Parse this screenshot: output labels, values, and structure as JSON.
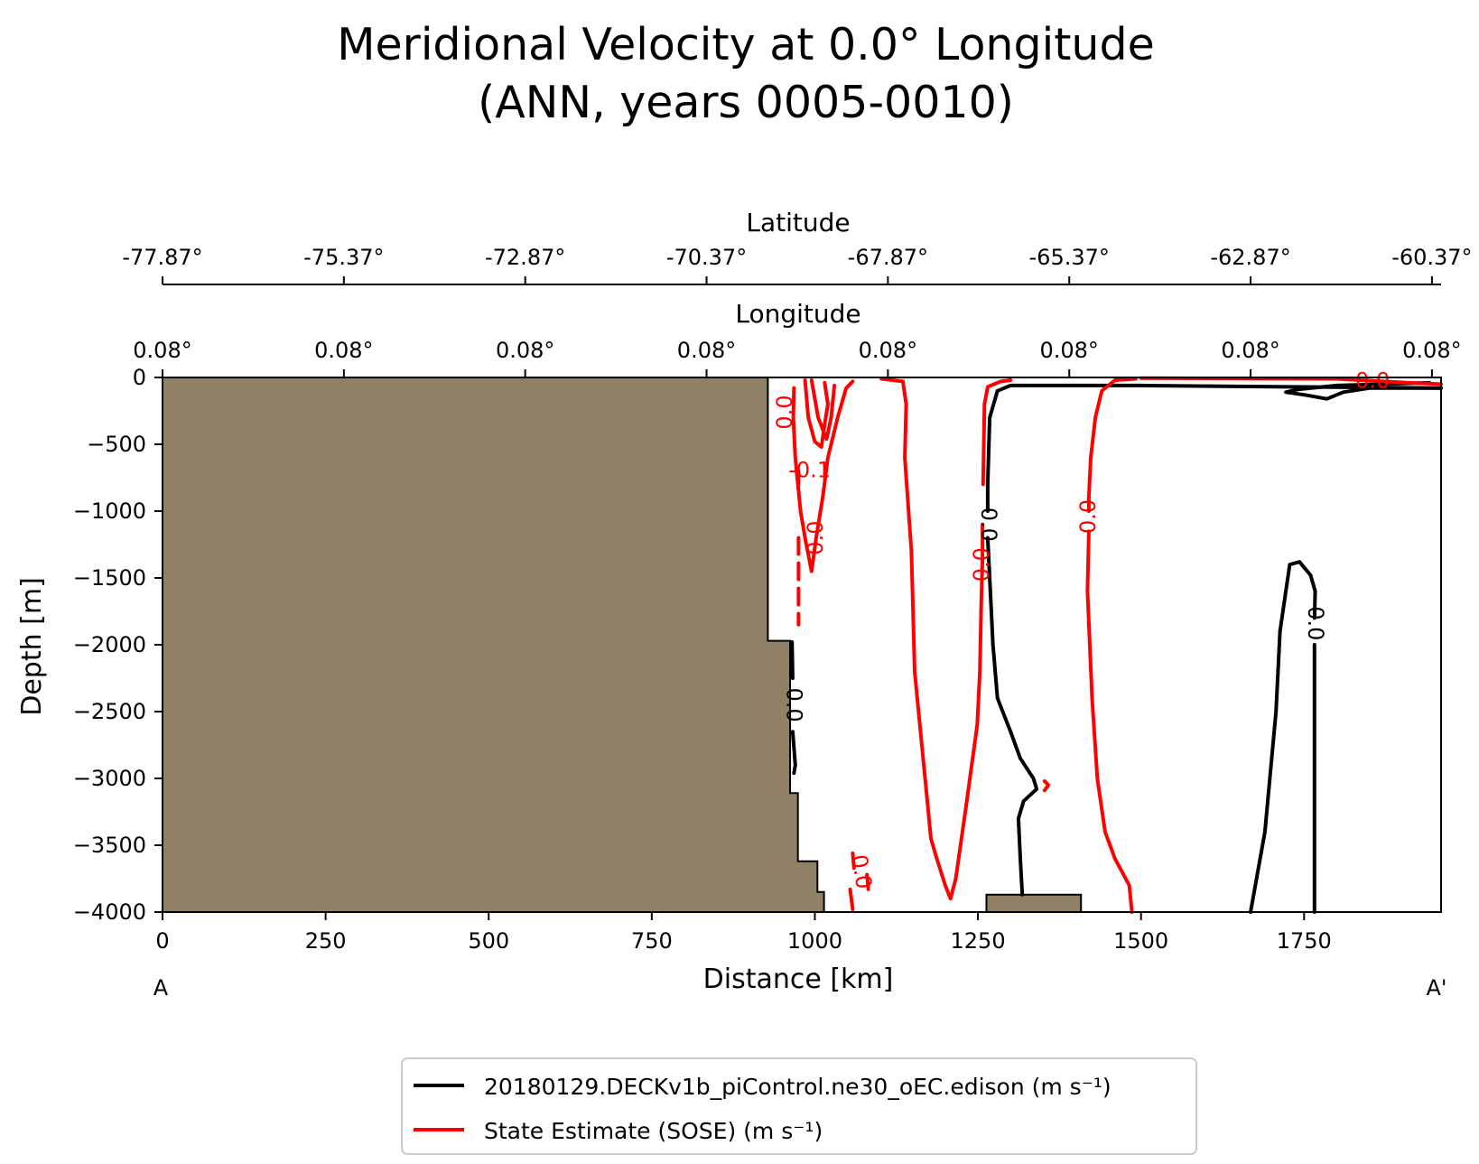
{
  "chart_data": {
    "type": "line",
    "title_line1": "Meridional Velocity at 0.0° Longitude",
    "title_line2": "(ANN, years 0005-0010)",
    "xlabel": "Distance [km]",
    "ylabel": "Depth [m]",
    "lat_axis_label": "Latitude",
    "lon_axis_label": "Longitude",
    "section_start_label": "A",
    "section_end_label": "A'",
    "xlim": [
      0,
      1960
    ],
    "ylim": [
      -4000,
      0
    ],
    "x_ticks": [
      0,
      250,
      500,
      750,
      1000,
      1250,
      1500,
      1750
    ],
    "y_ticks": [
      0,
      -500,
      -1000,
      -1500,
      -2000,
      -2500,
      -3000,
      -3500,
      -4000
    ],
    "lat_ticks": {
      "positions_km": [
        0,
        278,
        556,
        834,
        1112,
        1390,
        1668,
        1946
      ],
      "labels": [
        "-77.87°",
        "-75.37°",
        "-72.87°",
        "-70.37°",
        "-67.87°",
        "-65.37°",
        "-62.87°",
        "-60.37°"
      ]
    },
    "lon_ticks": {
      "positions_km": [
        0,
        278,
        556,
        834,
        1112,
        1390,
        1668,
        1946
      ],
      "labels": [
        "0.08°",
        "0.08°",
        "0.08°",
        "0.08°",
        "0.08°",
        "0.08°",
        "0.08°",
        "0.08°"
      ]
    },
    "colors": {
      "model": "#000000",
      "obs": "#ff0000",
      "land": "#8f8066"
    },
    "bathymetry": [
      [
        0,
        0
      ],
      [
        928,
        0
      ],
      [
        928,
        -1970
      ],
      [
        962,
        -1970
      ],
      [
        962,
        -3110
      ],
      [
        974,
        -3110
      ],
      [
        974,
        -3620
      ],
      [
        1004,
        -3620
      ],
      [
        1004,
        -3850
      ],
      [
        1014,
        -3850
      ],
      [
        1014,
        -4000
      ],
      [
        0,
        -4000
      ]
    ],
    "seamount": [
      [
        1263,
        -4000
      ],
      [
        1263,
        -3870
      ],
      [
        1408,
        -3870
      ],
      [
        1408,
        -4000
      ]
    ],
    "series": [
      {
        "name": "20180129.DECKv1b_piControl.ne30_oEC.edison (m s⁻¹)",
        "color": "#000000",
        "contours": [
          {
            "points": [
              [
                1960,
                -80
              ],
              [
                1500,
                -60
              ],
              [
                1300,
                -60
              ],
              [
                1280,
                -100
              ],
              [
                1268,
                -300
              ],
              [
                1265,
                -800
              ],
              [
                1265,
                -1000
              ]
            ]
          },
          {
            "points": [
              [
                1265,
                -1200
              ],
              [
                1268,
                -1500
              ],
              [
                1273,
                -2000
              ],
              [
                1280,
                -2400
              ],
              [
                1300,
                -2650
              ],
              [
                1315,
                -2850
              ],
              [
                1335,
                -3000
              ],
              [
                1340,
                -3080
              ],
              [
                1320,
                -3170
              ],
              [
                1312,
                -3300
              ],
              [
                1315,
                -3600
              ],
              [
                1318,
                -3870
              ]
            ]
          },
          {
            "points": [
              [
                1942,
                -40
              ],
              [
                1800,
                -60
              ],
              [
                1740,
                -90
              ],
              [
                1722,
                -110
              ],
              [
                1750,
                -130
              ],
              [
                1785,
                -160
              ],
              [
                1810,
                -110
              ],
              [
                1850,
                -80
              ],
              [
                1960,
                -80
              ]
            ]
          },
          {
            "points": [
              [
                1668,
                -4000
              ],
              [
                1690,
                -3400
              ],
              [
                1707,
                -2500
              ],
              [
                1713,
                -1900
              ],
              [
                1728,
                -1400
              ],
              [
                1743,
                -1380
              ],
              [
                1760,
                -1480
              ],
              [
                1767,
                -1600
              ],
              [
                1766,
                -1800
              ]
            ]
          },
          {
            "points": [
              [
                1766,
                -2000
              ],
              [
                1766,
                -2500
              ],
              [
                1766,
                -3000
              ],
              [
                1766,
                -4000
              ]
            ]
          },
          {
            "points": [
              [
                965,
                -1980
              ],
              [
                966,
                -2250
              ]
            ]
          },
          {
            "points": [
              [
                966,
                -2650
              ],
              [
                970,
                -2900
              ],
              [
                968,
                -2960
              ]
            ]
          }
        ]
      },
      {
        "name": "State Estimate (SOSE) (m s⁻¹)",
        "color": "#ff0000",
        "contours": [
          {
            "points": [
              [
                1102,
                -10
              ],
              [
                1135,
                -30
              ],
              [
                1140,
                -200
              ],
              [
                1138,
                -600
              ],
              [
                1148,
                -1300
              ],
              [
                1153,
                -2200
              ],
              [
                1163,
                -2700
              ],
              [
                1170,
                -3050
              ],
              [
                1178,
                -3450
              ],
              [
                1187,
                -3600
              ],
              [
                1200,
                -3800
              ],
              [
                1208,
                -3900
              ],
              [
                1216,
                -3750
              ],
              [
                1232,
                -3200
              ],
              [
                1249,
                -2600
              ],
              [
                1253,
                -2200
              ],
              [
                1255,
                -1700
              ],
              [
                1257,
                -1350
              ],
              [
                1257,
                -1100
              ]
            ]
          },
          {
            "points": [
              [
                1258,
                -800
              ],
              [
                1260,
                -200
              ],
              [
                1265,
                -70
              ],
              [
                1285,
                -30
              ],
              [
                1300,
                -20
              ]
            ]
          },
          {
            "points": [
              [
                1492,
                -10
              ],
              [
                1460,
                -20
              ],
              [
                1440,
                -100
              ],
              [
                1430,
                -300
              ],
              [
                1423,
                -600
              ],
              [
                1420,
                -900
              ],
              [
                1420,
                -1000
              ]
            ]
          },
          {
            "points": [
              [
                1420,
                -1150
              ],
              [
                1418,
                -1600
              ],
              [
                1425,
                -2400
              ],
              [
                1433,
                -3000
              ],
              [
                1445,
                -3400
              ],
              [
                1460,
                -3600
              ],
              [
                1482,
                -3800
              ],
              [
                1486,
                -4000
              ]
            ]
          },
          {
            "points": [
              [
                1500,
                -5
              ],
              [
                1800,
                -10
              ],
              [
                1910,
                -40
              ],
              [
                1960,
                -50
              ]
            ]
          },
          {
            "points": [
              [
                968,
                -80
              ],
              [
                967,
                -300
              ],
              [
                970,
                -600
              ],
              [
                978,
                -1000
              ],
              [
                985,
                -1200
              ],
              [
                995,
                -1450
              ],
              [
                1002,
                -1200
              ],
              [
                1012,
                -900
              ],
              [
                1020,
                -600
              ],
              [
                1035,
                -300
              ],
              [
                1048,
                -80
              ],
              [
                1058,
                -30
              ]
            ]
          },
          {
            "points": [
              [
                985,
                -20
              ],
              [
                990,
                -300
              ],
              [
                1000,
                -480
              ],
              [
                1010,
                -520
              ],
              [
                1015,
                -350
              ],
              [
                1020,
                -200
              ],
              [
                1015,
                -40
              ]
            ]
          },
          {
            "points": [
              [
                995,
                -20
              ],
              [
                1005,
                -300
              ],
              [
                1018,
                -460
              ],
              [
                1025,
                -300
              ],
              [
                1030,
                -60
              ]
            ]
          },
          {
            "points": [
              [
                975,
                -700
              ],
              [
                975,
                -800
              ]
            ],
            "dashed": true
          },
          {
            "points": [
              [
                975,
                -1200
              ],
              [
                975,
                -1850
              ]
            ],
            "dashed": true
          },
          {
            "points": [
              [
                1080,
                -3720
              ],
              [
                1082,
                -3830
              ]
            ]
          },
          {
            "points": [
              [
                1058,
                -3560
              ],
              [
                1060,
                -3670
              ]
            ]
          },
          {
            "points": [
              [
                1054,
                -3830
              ],
              [
                1058,
                -3980
              ]
            ]
          },
          {
            "points": [
              [
                1352,
                -3020
              ],
              [
                1358,
                -3050
              ],
              [
                1352,
                -3090
              ]
            ]
          }
        ]
      }
    ],
    "contour_labels": [
      {
        "text": "0.0",
        "x": 1265,
        "y": -1100,
        "color": "#000000",
        "rotation": 90
      },
      {
        "text": "0.0",
        "x": 1766,
        "y": -1840,
        "color": "#000000",
        "rotation": 90
      },
      {
        "text": "0.0",
        "x": 967,
        "y": -2450,
        "color": "#000000",
        "rotation": 90
      },
      {
        "text": "0.0",
        "x": 1257,
        "y": -1400,
        "color": "#ff0000",
        "rotation": -90
      },
      {
        "text": "0.0",
        "x": 1420,
        "y": -1040,
        "color": "#ff0000",
        "rotation": -90
      },
      {
        "text": "0.0",
        "x": 1002,
        "y": -1200,
        "color": "#ff0000",
        "rotation": -90
      },
      {
        "text": "0.0",
        "x": 955,
        "y": -260,
        "color": "#ff0000",
        "rotation": -90
      },
      {
        "text": "-0.1",
        "x": 992,
        "y": -700,
        "color": "#ff0000",
        "rotation": 0
      },
      {
        "text": "0.0",
        "x": 1070,
        "y": -3700,
        "color": "#ff0000",
        "rotation": 80
      },
      {
        "text": "0.0",
        "x": 1855,
        "y": -30,
        "color": "#ff0000",
        "rotation": 0
      }
    ],
    "legend": {
      "placement": "bottom-center"
    }
  }
}
